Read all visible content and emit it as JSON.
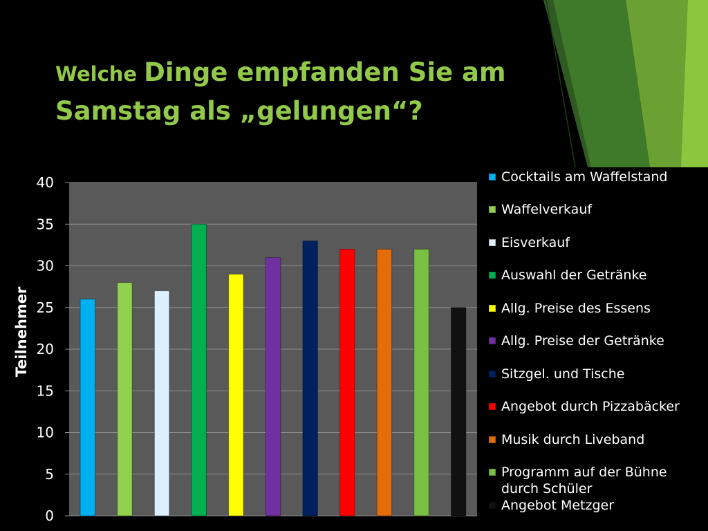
{
  "slide": {
    "title_lead": "Welche ",
    "title_rest": "Dinge empfanden Sie am Samstag als „gelungen“?"
  },
  "chart_data": {
    "type": "bar",
    "title": "",
    "xlabel": "",
    "ylabel": "Teilnehmer",
    "ylim": [
      0,
      40
    ],
    "yticks": [
      0,
      5,
      10,
      15,
      20,
      25,
      30,
      35,
      40
    ],
    "grid": true,
    "legend_position": "right",
    "categories": [
      "Cocktails am Waffelstand",
      "Waffelverkauf",
      "Eisverkauf",
      "Auswahl der Getränke",
      "Allg. Preise des Essens",
      "Allg. Preise der Getränke",
      "Sitzgel. und Tische",
      "Angebot durch Pizzabäcker",
      "Musik durch Liveband",
      "Programm auf der Bühne durch Schüler",
      "Angebot Metzger"
    ],
    "values": [
      26,
      28,
      27,
      35,
      29,
      31,
      33,
      32,
      32,
      32,
      25
    ],
    "colors": [
      "#00b0f0",
      "#92d050",
      "#ddf0ff",
      "#00b050",
      "#ffff00",
      "#7030a0",
      "#002060",
      "#ff0000",
      "#e46c0a",
      "#7ac143",
      "#111111"
    ]
  },
  "legend": {
    "items": [
      {
        "label": "Cocktails am Waffelstand"
      },
      {
        "label": "Waffelverkauf"
      },
      {
        "label": "Eisverkauf"
      },
      {
        "label": "Auswahl der Getränke"
      },
      {
        "label": "Allg. Preise des Essens"
      },
      {
        "label": "Allg. Preise der Getränke"
      },
      {
        "label": "Sitzgel. und Tische"
      },
      {
        "label": "Angebot durch Pizzabäcker"
      },
      {
        "label": "Musik durch Liveband"
      },
      {
        "label": "Programm auf der Bühne durch Schüler"
      },
      {
        "label": "Angebot Metzger"
      }
    ]
  },
  "theme": {
    "title_color": "#92c94a",
    "plot_background": "#595959",
    "gridline_color": "#8c8c8c",
    "axis_text_color": "#ffffff",
    "background": "#000000"
  }
}
